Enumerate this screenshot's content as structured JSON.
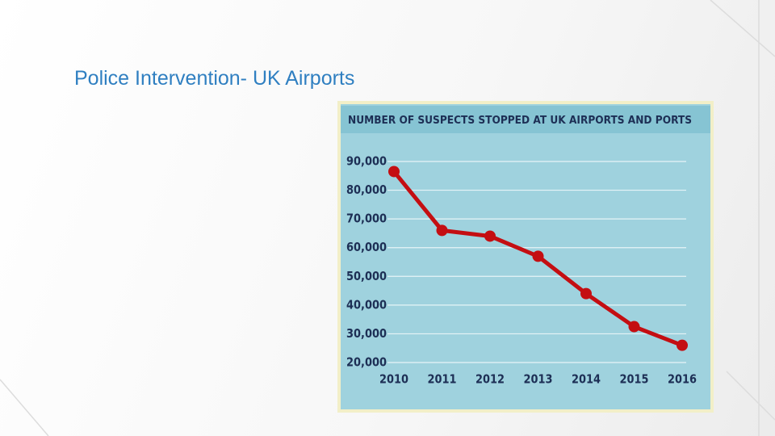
{
  "slide_title": "Police Intervention- UK Airports",
  "chart_data": {
    "type": "line",
    "title": "NUMBER OF SUSPECTS STOPPED AT UK AIRPORTS AND PORTS",
    "categories": [
      "2010",
      "2011",
      "2012",
      "2013",
      "2014",
      "2015",
      "2016"
    ],
    "values": [
      86500,
      66000,
      64000,
      57000,
      44000,
      32500,
      26000
    ],
    "color": "#c40e12",
    "ylim": [
      20000,
      90000
    ],
    "yticks": [
      {
        "value": 20000,
        "label": "20,000"
      },
      {
        "value": 30000,
        "label": "30,000"
      },
      {
        "value": 40000,
        "label": "40,000"
      },
      {
        "value": 50000,
        "label": "50,000"
      },
      {
        "value": 60000,
        "label": "60,000"
      },
      {
        "value": 70000,
        "label": "70,000"
      },
      {
        "value": 80000,
        "label": "80,000"
      },
      {
        "value": 90000,
        "label": "90,000"
      }
    ],
    "grid": true
  }
}
